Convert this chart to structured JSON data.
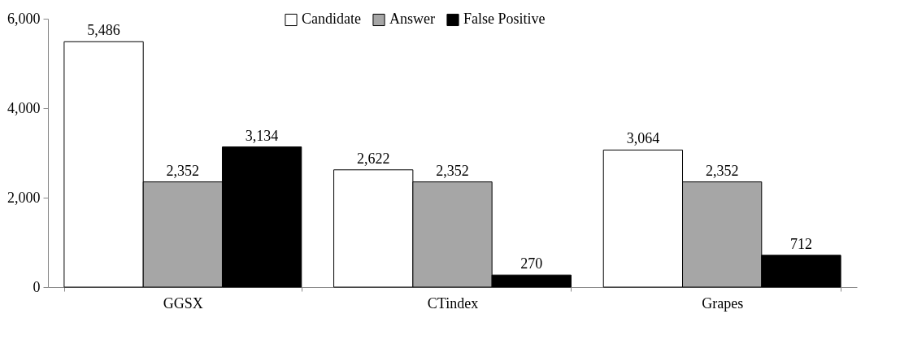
{
  "chart_data": {
    "type": "bar",
    "categories": [
      "GGSX",
      "CTindex",
      "Grapes"
    ],
    "series": [
      {
        "name": "Candidate",
        "color": "#ffffff",
        "values": [
          5486,
          2622,
          3064
        ],
        "value_labels": [
          "5,486",
          "2,622",
          "3,064"
        ]
      },
      {
        "name": "Answer",
        "color": "#a6a6a6",
        "values": [
          2352,
          2352,
          2352
        ],
        "value_labels": [
          "2,352",
          "2,352",
          "2,352"
        ]
      },
      {
        "name": "False Positive",
        "color": "#000000",
        "values": [
          3134,
          270,
          712
        ],
        "value_labels": [
          "3,134",
          "270",
          "712"
        ]
      }
    ],
    "ylim": [
      0,
      6000
    ],
    "yticks": [
      0,
      {
        "value": 2000,
        "label": "2,000"
      },
      {
        "value": 4000,
        "label": "4,000"
      },
      {
        "value": 6000,
        "label": "6,000"
      }
    ],
    "grid": false,
    "legend": "top"
  }
}
